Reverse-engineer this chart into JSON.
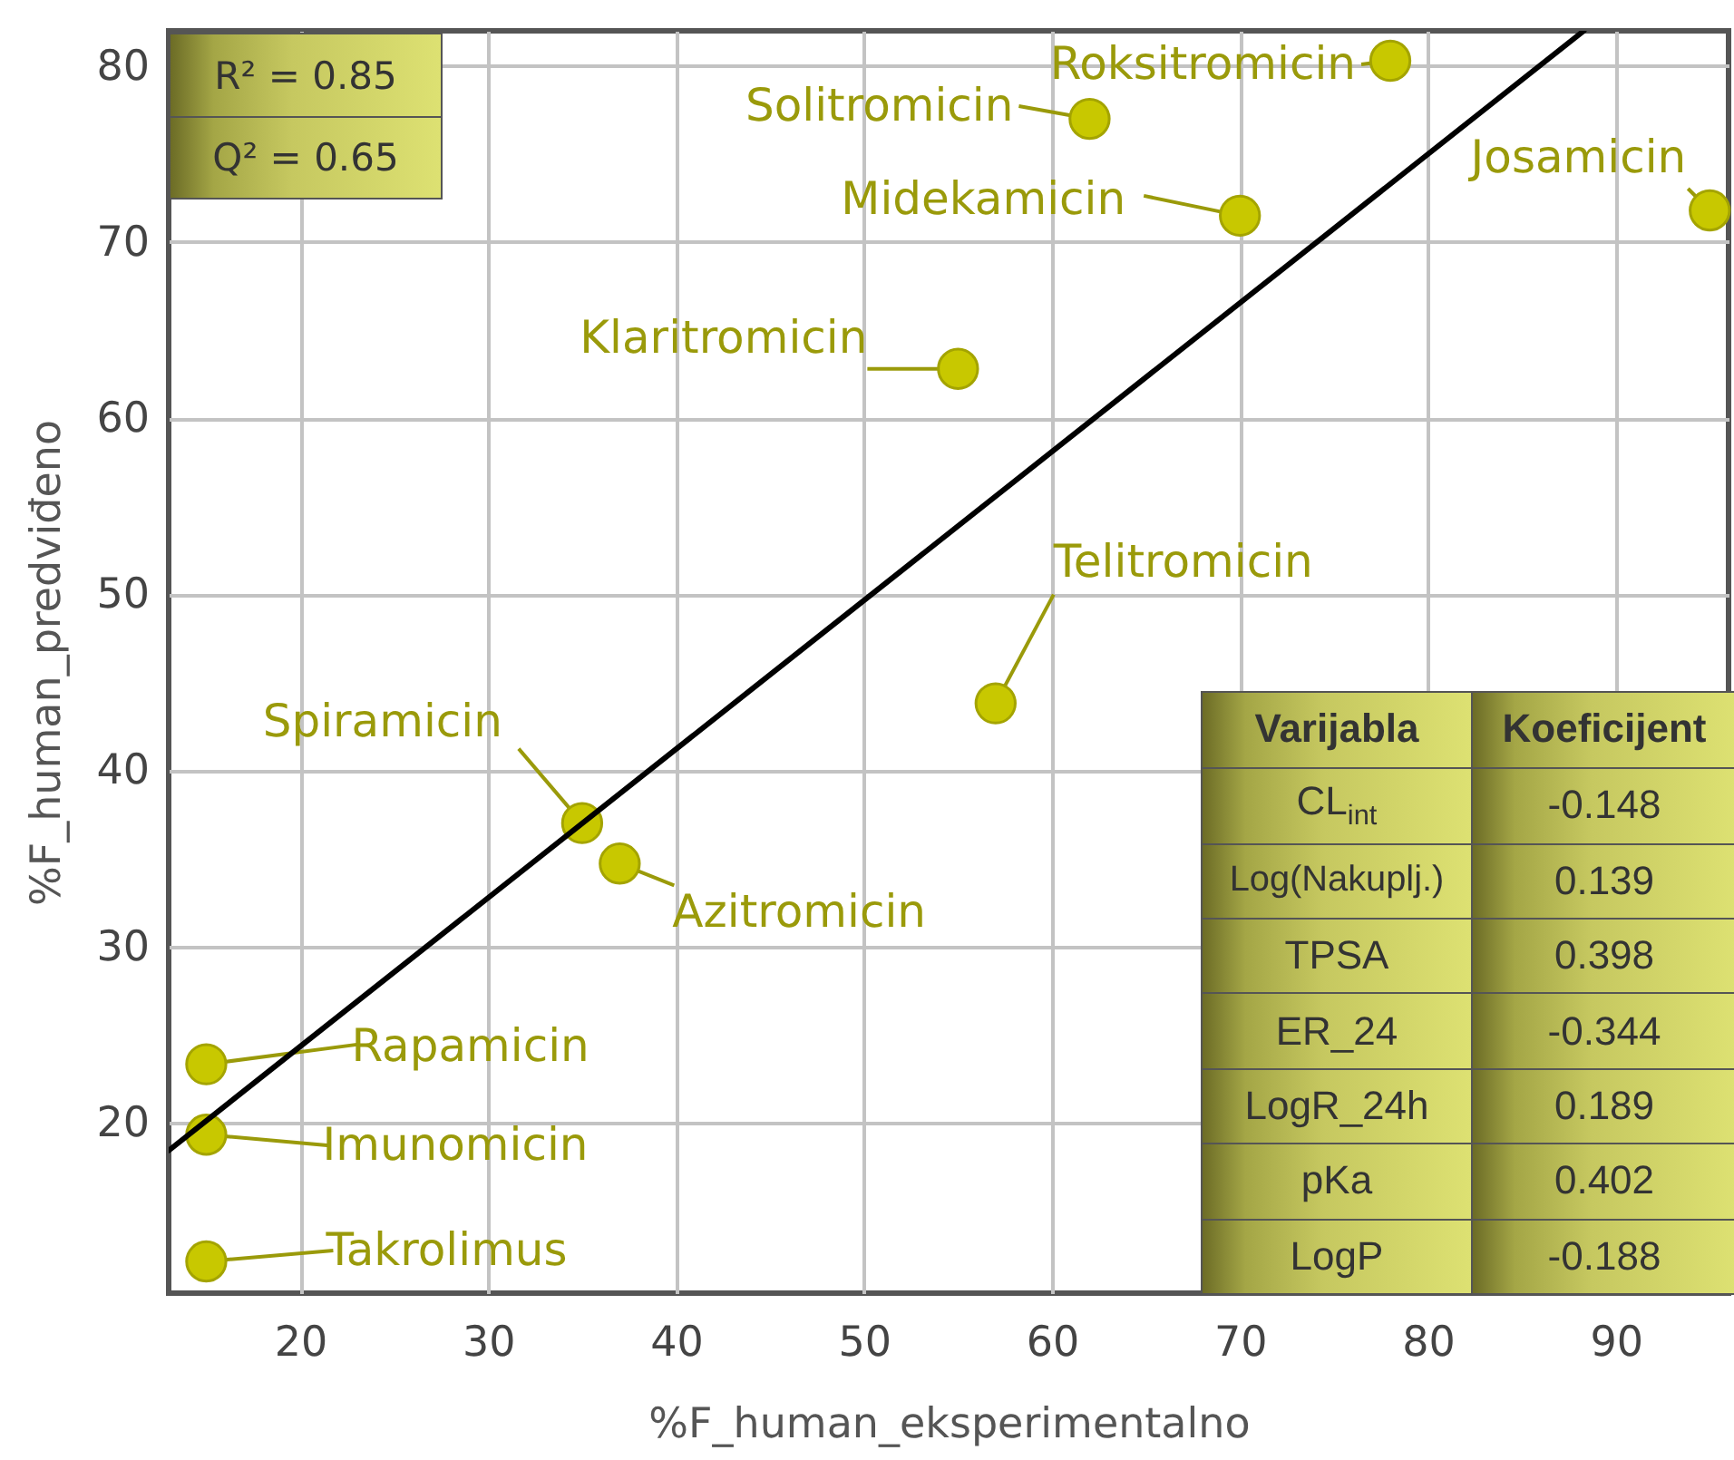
{
  "chart_data": {
    "type": "scatter",
    "xlabel": "%F_human_eksperimentalno",
    "ylabel": "%F_human_predviđeno",
    "xlim": [
      13,
      96
    ],
    "ylim": [
      10.3,
      82
    ],
    "xticks": [
      20,
      30,
      40,
      50,
      60,
      70,
      80,
      90
    ],
    "yticks": [
      20,
      30,
      40,
      50,
      60,
      70,
      80
    ],
    "grid": true,
    "marker": "circle",
    "series": [
      {
        "type": "scatter",
        "color": "#c8c800",
        "x": [
          78,
          62,
          70,
          95,
          55,
          57,
          35,
          37,
          15,
          15,
          15
        ],
        "values": [
          80.3,
          77,
          71.5,
          71.8,
          62.8,
          43.8,
          37,
          34.7,
          23.3,
          19.3,
          12.1
        ]
      },
      {
        "type": "line",
        "color": "#000000",
        "marker": "none",
        "x": [
          13,
          88.3
        ],
        "values": [
          18.4,
          82
        ]
      }
    ],
    "annotations": [
      "R² = 0.85",
      "Q² = 0.65",
      "Varijabla",
      "Koeficijent",
      "CL$_{int}$",
      "-0.148",
      "Log(Nakuplj.)",
      "0.139",
      "TPSA",
      "0.398",
      "ER_24",
      "-0.344",
      "LogR_24h",
      "0.189",
      "pKa",
      "0.402",
      "LogP",
      "-0.188",
      {
        "text": "Roksitromicin",
        "x": 78,
        "y": 80.3
      },
      {
        "text": "Solitromicin",
        "x": 62,
        "y": 77
      },
      {
        "text": "Midekamicin",
        "x": 70,
        "y": 71.5
      },
      {
        "text": "Josamicin",
        "x": 95,
        "y": 71.8
      },
      {
        "text": "Klaritromicin",
        "x": 55,
        "y": 62.8
      },
      {
        "text": "Telitromicin",
        "x": 57,
        "y": 43.8
      },
      {
        "text": "Spiramicin",
        "x": 35,
        "y": 37
      },
      {
        "text": "Azitromicin",
        "x": 37,
        "y": 34.7
      },
      {
        "text": "Rapamicin",
        "x": 15,
        "y": 23.3
      },
      {
        "text": "Imunomicin",
        "x": 15,
        "y": 19.3
      },
      {
        "text": "Takrolimus",
        "x": 15,
        "y": 12.1
      }
    ]
  }
}
